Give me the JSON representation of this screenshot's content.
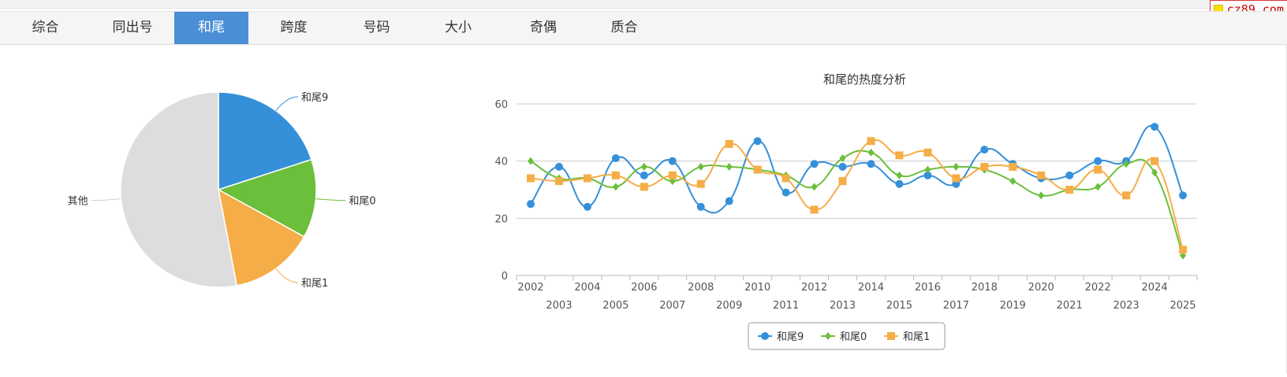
{
  "watermark": "cz89.com",
  "tabs": [
    {
      "label": "综合",
      "active": false
    },
    {
      "label": "同出号",
      "active": false
    },
    {
      "label": "和尾",
      "active": true
    },
    {
      "label": "跨度",
      "active": false
    },
    {
      "label": "号码",
      "active": false
    },
    {
      "label": "大小",
      "active": false
    },
    {
      "label": "奇偶",
      "active": false
    },
    {
      "label": "质合",
      "active": false
    }
  ],
  "chart_data": [
    {
      "type": "pie",
      "slices": [
        {
          "label": "和尾9",
          "value": 20,
          "color": "#3590d9"
        },
        {
          "label": "和尾0",
          "value": 13,
          "color": "#6bbf3b"
        },
        {
          "label": "和尾1",
          "value": 14,
          "color": "#f5ad47"
        },
        {
          "label": "其他",
          "value": 53,
          "color": "#dddddd"
        }
      ]
    },
    {
      "type": "line",
      "title": "和尾的热度分析",
      "x": [
        "2002",
        "2003",
        "2004",
        "2005",
        "2006",
        "2007",
        "2008",
        "2009",
        "2010",
        "2011",
        "2012",
        "2013",
        "2014",
        "2015",
        "2016",
        "2017",
        "2018",
        "2019",
        "2020",
        "2021",
        "2022",
        "2023",
        "2024",
        "2025"
      ],
      "ylim": [
        0,
        60
      ],
      "yticks": [
        0,
        20,
        40,
        60
      ],
      "grid": true,
      "legend": "bottom-center",
      "series": [
        {
          "name": "和尾9",
          "color": "#3590d9",
          "marker": "circle",
          "values": [
            25,
            38,
            24,
            41,
            35,
            40,
            24,
            26,
            47,
            29,
            39,
            38,
            39,
            32,
            35,
            32,
            44,
            39,
            34,
            35,
            40,
            40,
            52,
            28
          ]
        },
        {
          "name": "和尾0",
          "color": "#6bbf3b",
          "marker": "diamond",
          "values": [
            40,
            34,
            34,
            31,
            38,
            33,
            38,
            38,
            37,
            35,
            31,
            41,
            43,
            35,
            37,
            38,
            37,
            33,
            28,
            30,
            31,
            39,
            36,
            7
          ]
        },
        {
          "name": "和尾1",
          "color": "#f5ad47",
          "marker": "square",
          "values": [
            34,
            33,
            34,
            35,
            31,
            35,
            32,
            46,
            37,
            34,
            23,
            33,
            47,
            42,
            43,
            34,
            38,
            38,
            35,
            30,
            37,
            28,
            40,
            9
          ]
        }
      ]
    }
  ]
}
